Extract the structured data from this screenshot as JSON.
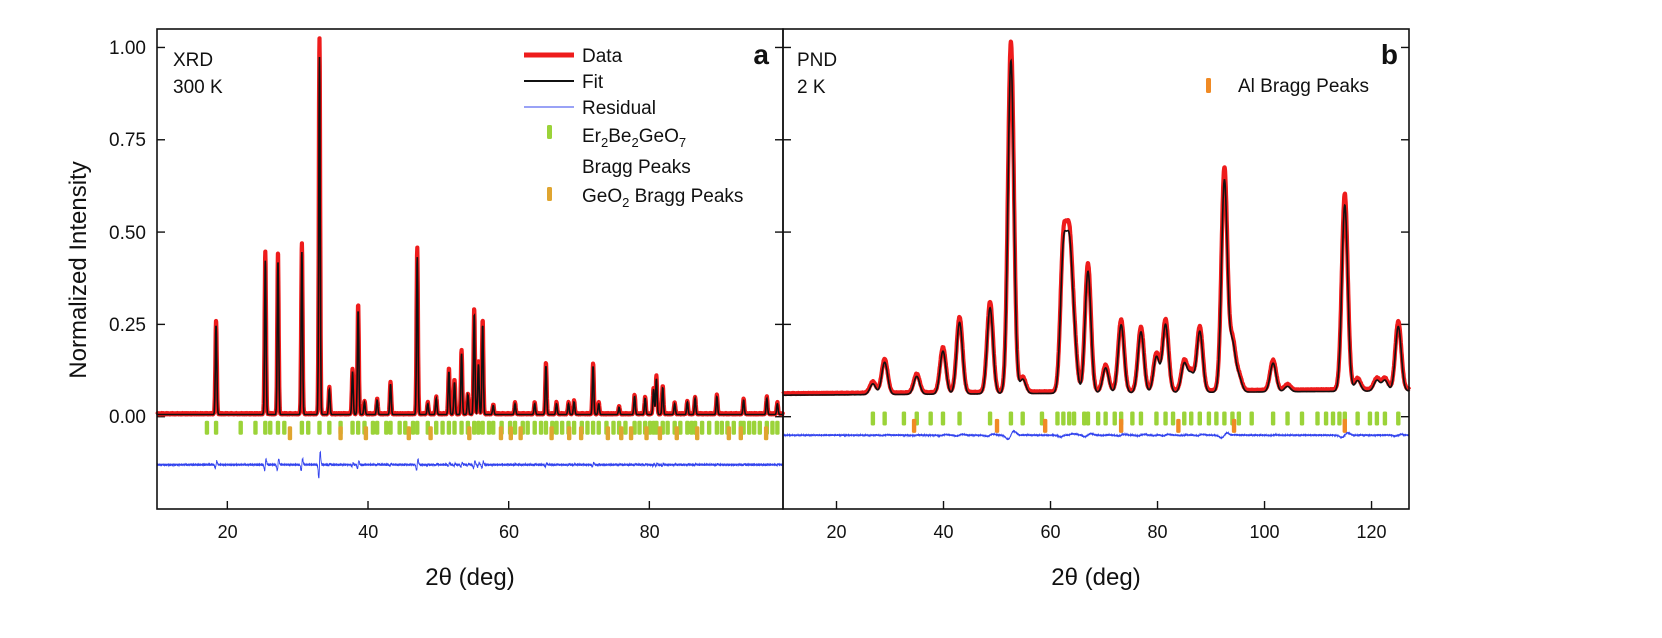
{
  "chart_data": {
    "type": "line",
    "ylabel": "Normalized Intensity",
    "y_ticks": [
      "1.00",
      "0.75",
      "0.50",
      "0.25",
      "0.00"
    ],
    "panels": [
      {
        "letter": "a",
        "annotation": [
          "XRD",
          "300 K"
        ],
        "xlabel": "2θ (deg)",
        "xlim": [
          10,
          99
        ],
        "ylim": [
          -0.25,
          1.05
        ],
        "x_ticks": [
          "20",
          "40",
          "60",
          "80"
        ],
        "baseline": 0.006,
        "residual_offset": -0.13,
        "legend": [
          {
            "kind": "thick-line",
            "label": "Data",
            "color": "#ee1c1c"
          },
          {
            "kind": "line",
            "label": "Fit",
            "color": "#111111"
          },
          {
            "kind": "thin-line",
            "label": "Residual",
            "color": "#3344ee"
          },
          {
            "kind": "tick",
            "label": "Er2Be2GeO7",
            "label_line2": "Bragg Peaks",
            "color": "#9bd339"
          },
          {
            "kind": "tick",
            "label": "GeO2 Bragg Peaks",
            "color": "#e0a530"
          }
        ],
        "peaks": [
          {
            "x": 18.4,
            "y": 0.25
          },
          {
            "x": 25.4,
            "y": 0.43
          },
          {
            "x": 27.2,
            "y": 0.43
          },
          {
            "x": 30.6,
            "y": 0.455
          },
          {
            "x": 33.1,
            "y": 1.0
          },
          {
            "x": 34.5,
            "y": 0.07
          },
          {
            "x": 37.8,
            "y": 0.12
          },
          {
            "x": 38.6,
            "y": 0.29
          },
          {
            "x": 39.5,
            "y": 0.035
          },
          {
            "x": 41.3,
            "y": 0.04
          },
          {
            "x": 43.2,
            "y": 0.085
          },
          {
            "x": 47.0,
            "y": 0.44
          },
          {
            "x": 48.5,
            "y": 0.03
          },
          {
            "x": 49.7,
            "y": 0.045
          },
          {
            "x": 51.5,
            "y": 0.12
          },
          {
            "x": 52.3,
            "y": 0.09
          },
          {
            "x": 53.3,
            "y": 0.17
          },
          {
            "x": 54.2,
            "y": 0.055
          },
          {
            "x": 55.1,
            "y": 0.28
          },
          {
            "x": 55.7,
            "y": 0.14
          },
          {
            "x": 56.3,
            "y": 0.25
          },
          {
            "x": 57.8,
            "y": 0.025
          },
          {
            "x": 60.9,
            "y": 0.03
          },
          {
            "x": 63.7,
            "y": 0.03
          },
          {
            "x": 65.3,
            "y": 0.135
          },
          {
            "x": 66.8,
            "y": 0.03
          },
          {
            "x": 68.5,
            "y": 0.03
          },
          {
            "x": 69.3,
            "y": 0.035
          },
          {
            "x": 72.0,
            "y": 0.135
          },
          {
            "x": 72.8,
            "y": 0.03
          },
          {
            "x": 75.7,
            "y": 0.02
          },
          {
            "x": 77.9,
            "y": 0.05
          },
          {
            "x": 79.4,
            "y": 0.045
          },
          {
            "x": 80.6,
            "y": 0.07
          },
          {
            "x": 81.0,
            "y": 0.1
          },
          {
            "x": 81.9,
            "y": 0.075
          },
          {
            "x": 83.6,
            "y": 0.03
          },
          {
            "x": 85.4,
            "y": 0.035
          },
          {
            "x": 86.5,
            "y": 0.045
          },
          {
            "x": 89.6,
            "y": 0.05
          },
          {
            "x": 93.4,
            "y": 0.04
          },
          {
            "x": 96.7,
            "y": 0.045
          },
          {
            "x": 98.2,
            "y": 0.03
          }
        ],
        "bragg_ticks": [
          {
            "color": "#9bd339",
            "y": -0.03,
            "x": [
              17.1,
              18.4,
              21.9,
              24.0,
              25.4,
              26.1,
              27.2,
              28.1,
              30.6,
              31.5,
              33.1,
              34.5,
              36.1,
              37.8,
              38.6,
              39.5,
              40.7,
              41.3,
              42.6,
              43.2,
              44.5,
              45.3,
              46.4,
              47.0,
              48.5,
              49.7,
              50.6,
              51.5,
              52.3,
              53.3,
              54.2,
              55.1,
              55.7,
              56.3,
              57.2,
              57.8,
              59.0,
              60.2,
              60.9,
              62.0,
              62.7,
              63.7,
              64.6,
              65.3,
              66.2,
              66.8,
              67.6,
              68.5,
              69.3,
              70.4,
              71.2,
              72.0,
              72.8,
              73.9,
              74.9,
              75.7,
              76.6,
              77.9,
              78.6,
              79.4,
              80.1,
              80.6,
              81.0,
              81.9,
              82.6,
              83.6,
              84.4,
              85.4,
              86.0,
              86.5,
              87.5,
              88.5,
              89.6,
              90.3,
              91.1,
              92.0,
              93.0,
              93.4,
              94.2,
              94.9,
              95.7,
              96.7,
              97.5,
              98.2
            ]
          },
          {
            "color": "#e0a530",
            "y": -0.045,
            "x": [
              28.9,
              36.1,
              39.7,
              45.8,
              48.9,
              54.4,
              58.9,
              60.3,
              61.7,
              66.1,
              68.6,
              70.3,
              74.1,
              76.0,
              77.4,
              79.6,
              81.5,
              83.9,
              86.8,
              91.3,
              93.0,
              96.6
            ]
          }
        ]
      },
      {
        "letter": "b",
        "annotation": [
          "PND",
          "2 K"
        ],
        "xlabel": "2θ (deg)",
        "xlim": [
          10,
          127
        ],
        "ylim": [
          -0.25,
          1.05
        ],
        "x_ticks": [
          "20",
          "40",
          "60",
          "80",
          "100",
          "120"
        ],
        "baseline": 0.06,
        "residual_offset": -0.05,
        "legend": [
          {
            "kind": "tick",
            "label": "Al Bragg Peaks",
            "color": "#f08a24"
          }
        ],
        "peaks": [
          {
            "x": 26.8,
            "y": 0.03
          },
          {
            "x": 29.0,
            "y": 0.09
          },
          {
            "x": 35.0,
            "y": 0.05
          },
          {
            "x": 39.9,
            "y": 0.12
          },
          {
            "x": 43.0,
            "y": 0.2
          },
          {
            "x": 48.7,
            "y": 0.24
          },
          {
            "x": 52.6,
            "y": 0.93
          },
          {
            "x": 54.8,
            "y": 0.04
          },
          {
            "x": 62.4,
            "y": 0.38
          },
          {
            "x": 63.5,
            "y": 0.36
          },
          {
            "x": 64.4,
            "y": 0.13
          },
          {
            "x": 67.0,
            "y": 0.34
          },
          {
            "x": 70.3,
            "y": 0.07
          },
          {
            "x": 73.2,
            "y": 0.19
          },
          {
            "x": 76.9,
            "y": 0.17
          },
          {
            "x": 79.8,
            "y": 0.1
          },
          {
            "x": 81.5,
            "y": 0.19
          },
          {
            "x": 85.0,
            "y": 0.08
          },
          {
            "x": 86.3,
            "y": 0.05
          },
          {
            "x": 87.9,
            "y": 0.17
          },
          {
            "x": 92.5,
            "y": 0.59
          },
          {
            "x": 94.0,
            "y": 0.13
          },
          {
            "x": 95.2,
            "y": 0.04
          },
          {
            "x": 101.6,
            "y": 0.08
          },
          {
            "x": 104.3,
            "y": 0.015
          },
          {
            "x": 115.0,
            "y": 0.52
          },
          {
            "x": 117.4,
            "y": 0.03
          },
          {
            "x": 121.0,
            "y": 0.03
          },
          {
            "x": 122.5,
            "y": 0.03
          },
          {
            "x": 125.0,
            "y": 0.18
          }
        ],
        "bragg_ticks": [
          {
            "color": "#9bd339",
            "y": -0.005,
            "x": [
              26.8,
              29.0,
              32.6,
              35.0,
              37.6,
              39.9,
              43.0,
              48.7,
              52.6,
              54.8,
              58.4,
              61.3,
              62.4,
              63.5,
              64.4,
              66.3,
              67.0,
              68.9,
              70.3,
              72.0,
              73.2,
              75.3,
              76.9,
              79.8,
              81.5,
              82.9,
              85.0,
              86.3,
              87.9,
              89.6,
              91.0,
              92.5,
              94.0,
              95.2,
              97.6,
              101.6,
              104.3,
              107.0,
              109.9,
              111.5,
              112.8,
              114.0,
              115.0,
              117.4,
              119.7,
              121.0,
              122.5,
              125.0
            ]
          },
          {
            "color": "#f08a24",
            "y": -0.025,
            "x": [
              34.5,
              50.0,
              59.0,
              73.2,
              83.9,
              94.3,
              115.0
            ]
          }
        ]
      }
    ]
  }
}
